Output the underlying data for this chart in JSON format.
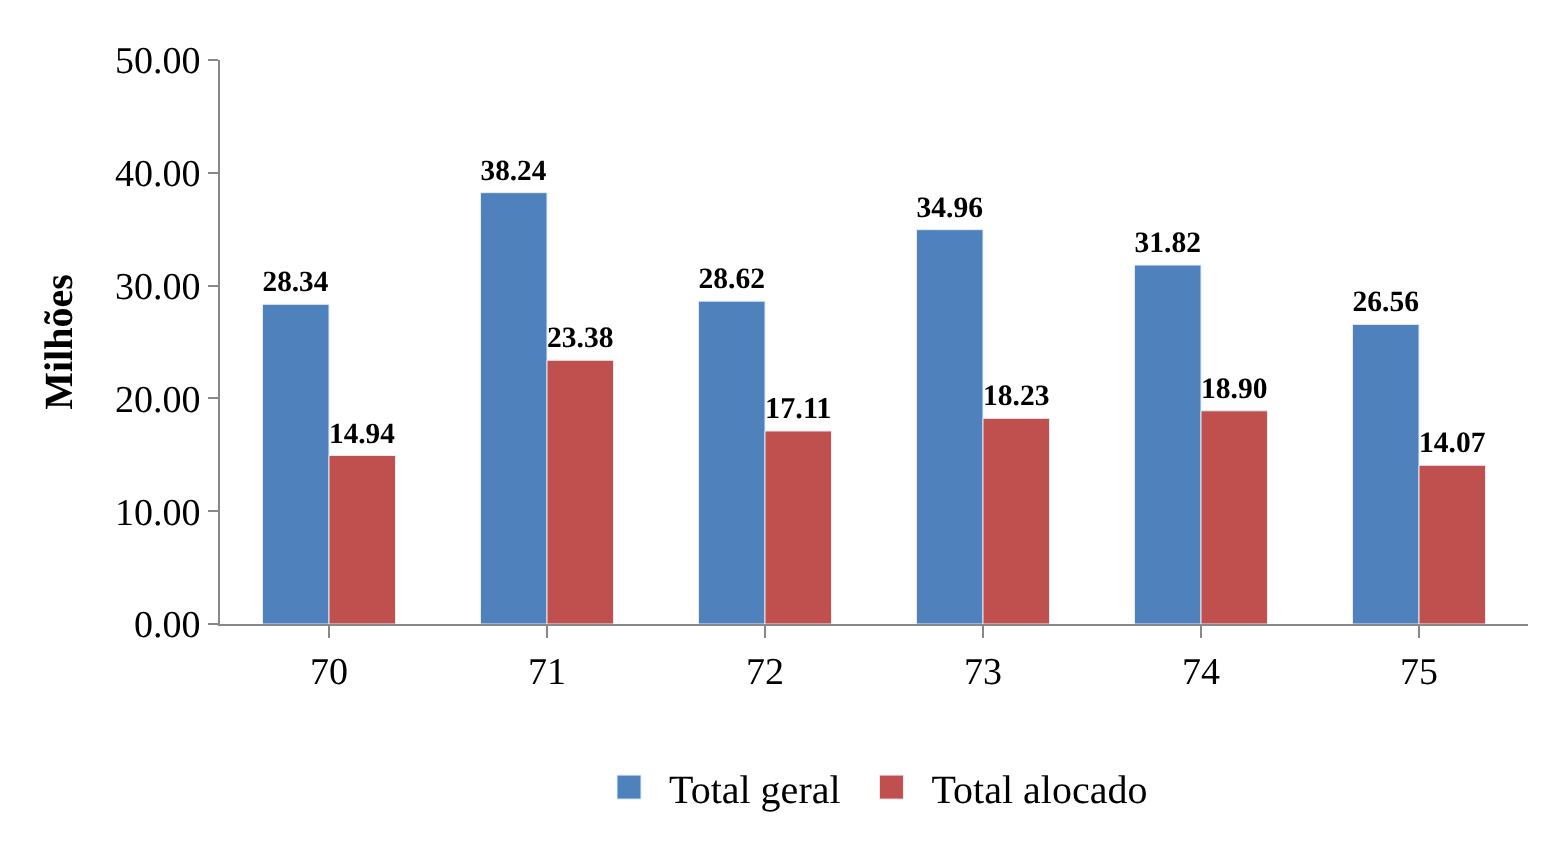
{
  "chart_data": {
    "type": "bar",
    "ylabel": "Milhões",
    "categories": [
      "70",
      "71",
      "72",
      "73",
      "74",
      "75"
    ],
    "series": [
      {
        "name": "Total geral",
        "color": "#4f81bd",
        "values": [
          28.34,
          38.24,
          28.62,
          34.96,
          31.82,
          26.56
        ],
        "value_labels": [
          "28.34",
          "38.24",
          "28.62",
          "34.96",
          "31.82",
          "26.56"
        ]
      },
      {
        "name": "Total alocado",
        "color": "#c0504d",
        "values": [
          14.94,
          23.38,
          17.11,
          18.23,
          18.9,
          14.07
        ],
        "value_labels": [
          "14.94",
          "23.38",
          "17.11",
          "18.23",
          "18.90",
          "14.07"
        ]
      }
    ],
    "ylim": [
      0,
      50
    ],
    "yticks": [
      {
        "value": 0,
        "label": "0.00"
      },
      {
        "value": 10,
        "label": "10.00"
      },
      {
        "value": 20,
        "label": "20.00"
      },
      {
        "value": 30,
        "label": "30.00"
      },
      {
        "value": 40,
        "label": "40.00"
      },
      {
        "value": 50,
        "label": "50.00"
      }
    ],
    "grid": false,
    "legend": "bottom"
  }
}
